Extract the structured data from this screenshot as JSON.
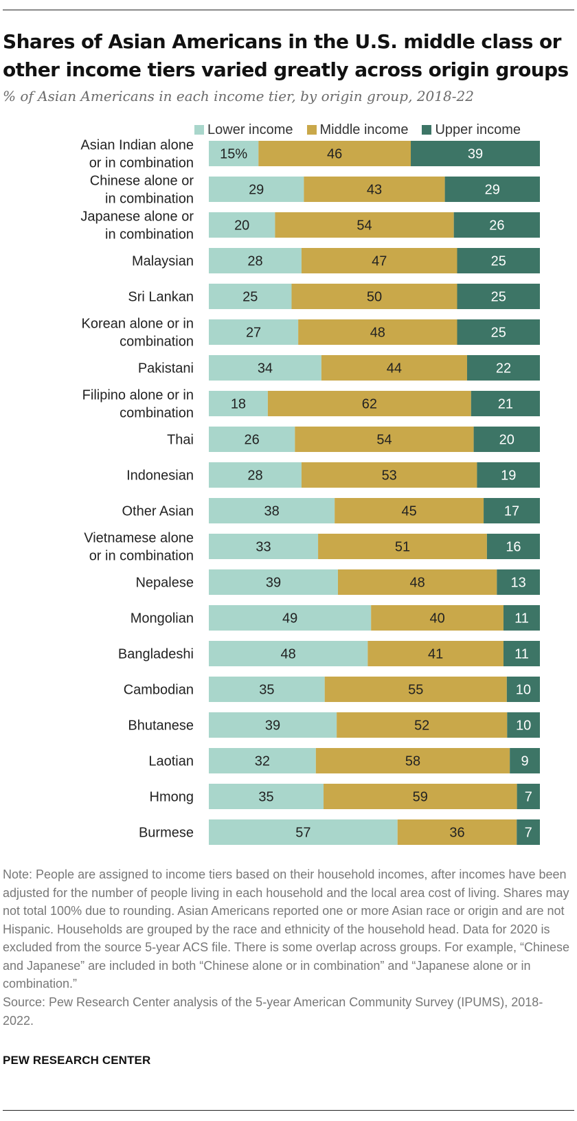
{
  "title": "Shares of Asian Americans in the U.S. middle class or other income tiers varied greatly across origin groups",
  "subtitle": "% of Asian Americans in each income tier, by origin group, 2018-22",
  "note": "Note: People are assigned to income tiers based on their household incomes, after incomes have been adjusted for the number of people living in each household and the local area cost of living. Shares may not total 100% due to rounding. Asian Americans reported one or more Asian race or origin and are not Hispanic. Households are grouped by the race and ethnicity of the household head. Data for 2020 is excluded from the source 5-year ACS file. There is some overlap across groups. For example, “Chinese and Japanese” are included in both “Chinese alone or in combination” and “Japanese alone or in combination.”",
  "source": "Source: Pew Research Center analysis of the 5-year American Community Survey (IPUMS), 2018-2022.",
  "brand": "PEW RESEARCH CENTER",
  "chart_data": {
    "type": "bar",
    "orientation": "horizontal",
    "stacked": true,
    "categories": [
      [
        "Asian Indian alone",
        "or in combination"
      ],
      [
        "Chinese alone or",
        "in combination"
      ],
      [
        "Japanese alone or",
        "in combination"
      ],
      [
        "Malaysian"
      ],
      [
        "Sri Lankan"
      ],
      [
        "Korean alone or in",
        "combination"
      ],
      [
        "Pakistani"
      ],
      [
        "Filipino alone or in",
        "combination"
      ],
      [
        "Thai"
      ],
      [
        "Indonesian"
      ],
      [
        "Other Asian"
      ],
      [
        "Vietnamese alone",
        "or in combination"
      ],
      [
        "Nepalese"
      ],
      [
        "Mongolian"
      ],
      [
        "Bangladeshi"
      ],
      [
        "Cambodian"
      ],
      [
        "Bhutanese"
      ],
      [
        "Laotian"
      ],
      [
        "Hmong"
      ],
      [
        "Burmese"
      ]
    ],
    "series": [
      {
        "name": "Lower income",
        "color": "#a9d6cb",
        "text_color": "#222222",
        "values": [
          15,
          29,
          20,
          28,
          25,
          27,
          34,
          18,
          26,
          28,
          38,
          33,
          39,
          49,
          48,
          35,
          39,
          32,
          35,
          57
        ]
      },
      {
        "name": "Middle income",
        "color": "#c9a84a",
        "text_color": "#222222",
        "values": [
          46,
          43,
          54,
          47,
          50,
          48,
          44,
          62,
          54,
          53,
          45,
          51,
          48,
          40,
          41,
          55,
          52,
          58,
          59,
          36
        ]
      },
      {
        "name": "Upper income",
        "color": "#3d7566",
        "text_color": "#ffffff",
        "values": [
          39,
          29,
          26,
          25,
          25,
          25,
          22,
          21,
          20,
          19,
          17,
          16,
          13,
          11,
          11,
          10,
          10,
          9,
          7,
          7
        ]
      }
    ],
    "value_labels": [
      [
        "15%",
        "46",
        "39"
      ],
      [
        "29",
        "43",
        "29"
      ],
      [
        "20",
        "54",
        "26"
      ],
      [
        "28",
        "47",
        "25"
      ],
      [
        "25",
        "50",
        "25"
      ],
      [
        "27",
        "48",
        "25"
      ],
      [
        "34",
        "44",
        "22"
      ],
      [
        "18",
        "62",
        "21"
      ],
      [
        "26",
        "54",
        "20"
      ],
      [
        "28",
        "53",
        "19"
      ],
      [
        "38",
        "45",
        "17"
      ],
      [
        "33",
        "51",
        "16"
      ],
      [
        "39",
        "48",
        "13"
      ],
      [
        "49",
        "40",
        "11"
      ],
      [
        "48",
        "41",
        "11"
      ],
      [
        "35",
        "55",
        "10"
      ],
      [
        "39",
        "52",
        "10"
      ],
      [
        "32",
        "58",
        "9"
      ],
      [
        "35",
        "59",
        "7"
      ],
      [
        "57",
        "36",
        "7"
      ]
    ],
    "xlim": [
      0,
      100
    ],
    "grid": false,
    "legend_position": "top"
  }
}
